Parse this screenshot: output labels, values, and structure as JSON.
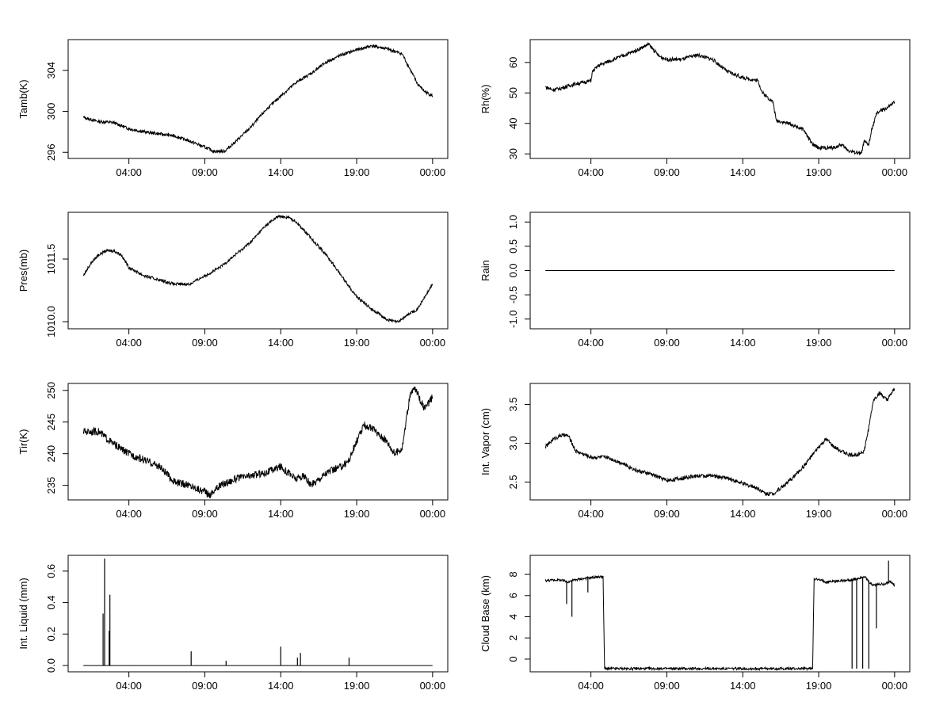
{
  "x_ticks": [
    "04:00",
    "09:00",
    "14:00",
    "19:00",
    "00:00"
  ],
  "x_tick_values": [
    3,
    8,
    13,
    18,
    23
  ],
  "line_color": "#000000",
  "chart_data": [
    {
      "type": "line",
      "ylabel": "Tamb(K)",
      "xlim": [
        -1,
        24
      ],
      "ylim": [
        295.4,
        307.0
      ],
      "yticks": [
        296,
        300,
        304
      ],
      "anchors": [
        [
          0,
          299.4
        ],
        [
          1,
          299.0
        ],
        [
          2,
          298.9
        ],
        [
          3,
          298.3
        ],
        [
          4,
          298.0
        ],
        [
          5,
          297.8
        ],
        [
          6,
          297.6
        ],
        [
          7,
          297.1
        ],
        [
          8,
          296.5
        ],
        [
          8.6,
          296.1
        ],
        [
          9.3,
          296.1
        ],
        [
          10,
          297.0
        ],
        [
          11,
          298.4
        ],
        [
          12,
          300.1
        ],
        [
          13,
          301.5
        ],
        [
          14,
          302.8
        ],
        [
          15,
          303.7
        ],
        [
          16,
          304.8
        ],
        [
          17,
          305.5
        ],
        [
          18,
          306.0
        ],
        [
          19,
          306.4
        ],
        [
          20,
          306.1
        ],
        [
          21,
          305.6
        ],
        [
          22,
          302.7
        ],
        [
          22.5,
          301.9
        ],
        [
          23,
          301.5
        ]
      ],
      "noise": 0.15
    },
    {
      "type": "line",
      "ylabel": "Rh(%)",
      "xlim": [
        -1,
        24
      ],
      "ylim": [
        28.5,
        67.5
      ],
      "yticks": [
        30,
        40,
        50,
        60
      ],
      "anchors": [
        [
          0,
          52
        ],
        [
          0.5,
          51
        ],
        [
          1,
          51.5
        ],
        [
          2,
          53
        ],
        [
          3,
          54
        ],
        [
          3.1,
          57
        ],
        [
          3.5,
          59
        ],
        [
          4,
          60
        ],
        [
          5,
          62
        ],
        [
          6,
          64
        ],
        [
          6.8,
          66
        ],
        [
          7.5,
          62
        ],
        [
          8,
          61
        ],
        [
          9,
          61
        ],
        [
          10,
          62.5
        ],
        [
          11,
          61
        ],
        [
          12,
          57
        ],
        [
          13,
          55
        ],
        [
          14,
          54
        ],
        [
          14.3,
          50
        ],
        [
          15,
          47
        ],
        [
          15.2,
          41
        ],
        [
          16,
          40
        ],
        [
          17,
          38
        ],
        [
          17.6,
          33
        ],
        [
          18,
          32
        ],
        [
          19,
          32
        ],
        [
          19.5,
          33
        ],
        [
          20,
          31
        ],
        [
          20.8,
          30
        ],
        [
          21,
          34
        ],
        [
          21.3,
          33
        ],
        [
          21.5,
          38
        ],
        [
          21.8,
          43
        ],
        [
          22,
          44
        ],
        [
          22.5,
          45
        ],
        [
          23,
          47
        ]
      ],
      "noise": 0.6
    },
    {
      "type": "line",
      "ylabel": "Pres(mb)",
      "xlim": [
        -1,
        24
      ],
      "ylim": [
        1009.83,
        1012.62
      ],
      "yticks": [
        1010.0,
        1011.5
      ],
      "ytick_labels": [
        "1010.0",
        "1011.5"
      ],
      "anchors": [
        [
          0,
          1011.1
        ],
        [
          0.5,
          1011.4
        ],
        [
          1,
          1011.6
        ],
        [
          1.5,
          1011.7
        ],
        [
          2,
          1011.7
        ],
        [
          2.5,
          1011.6
        ],
        [
          3,
          1011.3
        ],
        [
          4,
          1011.1
        ],
        [
          5,
          1011.0
        ],
        [
          6,
          1010.9
        ],
        [
          7,
          1010.9
        ],
        [
          8,
          1011.1
        ],
        [
          9,
          1011.3
        ],
        [
          10,
          1011.6
        ],
        [
          11,
          1011.9
        ],
        [
          12,
          1012.3
        ],
        [
          12.8,
          1012.52
        ],
        [
          13.5,
          1012.5
        ],
        [
          14,
          1012.4
        ],
        [
          15,
          1012.0
        ],
        [
          16,
          1011.6
        ],
        [
          17,
          1011.1
        ],
        [
          18,
          1010.6
        ],
        [
          19,
          1010.3
        ],
        [
          20,
          1010.05
        ],
        [
          20.7,
          1009.99
        ],
        [
          21.5,
          1010.2
        ],
        [
          22,
          1010.3
        ],
        [
          22.5,
          1010.6
        ],
        [
          23,
          1010.9
        ]
      ],
      "noise": 0.035
    },
    {
      "type": "line",
      "ylabel": "Rain",
      "xlim": [
        -1,
        24
      ],
      "ylim": [
        -1.2,
        1.2
      ],
      "yticks": [
        -1.0,
        -0.5,
        0.0,
        0.5,
        1.0
      ],
      "ytick_labels": [
        "-1.0",
        "-0.5",
        "0.0",
        "0.5",
        "1.0"
      ],
      "anchors": [
        [
          0,
          0
        ],
        [
          23,
          0
        ]
      ],
      "noise": 0
    },
    {
      "type": "line",
      "ylabel": "Tir(K)",
      "xlim": [
        -1,
        24
      ],
      "ylim": [
        232.7,
        251.1
      ],
      "yticks": [
        235,
        240,
        245,
        250
      ],
      "anchors": [
        [
          0,
          243.5
        ],
        [
          1,
          243.5
        ],
        [
          2,
          241.5
        ],
        [
          3,
          240
        ],
        [
          4,
          239
        ],
        [
          5,
          238
        ],
        [
          6,
          235.5
        ],
        [
          7,
          235
        ],
        [
          8,
          234
        ],
        [
          8.3,
          233.5
        ],
        [
          9,
          235
        ],
        [
          10,
          236
        ],
        [
          11,
          236.5
        ],
        [
          12,
          237
        ],
        [
          13,
          238
        ],
        [
          14,
          236
        ],
        [
          14.5,
          236.5
        ],
        [
          15,
          235
        ],
        [
          16,
          237
        ],
        [
          17,
          238
        ],
        [
          17.5,
          239
        ],
        [
          18,
          242
        ],
        [
          18.5,
          244.5
        ],
        [
          19,
          244
        ],
        [
          20,
          242
        ],
        [
          20.5,
          240
        ],
        [
          21,
          241
        ],
        [
          21.5,
          249
        ],
        [
          21.8,
          250.5
        ],
        [
          22.5,
          247
        ],
        [
          23,
          249
        ]
      ],
      "noise": 0.6
    },
    {
      "type": "line",
      "ylabel": "Int. Vapor (cm)",
      "xlim": [
        -1,
        24
      ],
      "ylim": [
        2.27,
        3.77
      ],
      "yticks": [
        2.5,
        3.0,
        3.5
      ],
      "ytick_labels": [
        "2.5",
        "3.0",
        "3.5"
      ],
      "anchors": [
        [
          0,
          2.95
        ],
        [
          0.5,
          3.05
        ],
        [
          1,
          3.1
        ],
        [
          1.5,
          3.1
        ],
        [
          2,
          2.9
        ],
        [
          3,
          2.82
        ],
        [
          4,
          2.82
        ],
        [
          5,
          2.75
        ],
        [
          6,
          2.65
        ],
        [
          7,
          2.6
        ],
        [
          8,
          2.52
        ],
        [
          9,
          2.55
        ],
        [
          10,
          2.58
        ],
        [
          11,
          2.58
        ],
        [
          12,
          2.55
        ],
        [
          13,
          2.48
        ],
        [
          14,
          2.42
        ],
        [
          14.5,
          2.35
        ],
        [
          15,
          2.35
        ],
        [
          16,
          2.5
        ],
        [
          17,
          2.7
        ],
        [
          18,
          2.95
        ],
        [
          18.5,
          3.05
        ],
        [
          19,
          2.95
        ],
        [
          19.5,
          2.9
        ],
        [
          20,
          2.85
        ],
        [
          20.5,
          2.85
        ],
        [
          21,
          2.9
        ],
        [
          21.3,
          3.2
        ],
        [
          21.6,
          3.55
        ],
        [
          22,
          3.65
        ],
        [
          22.5,
          3.55
        ],
        [
          23,
          3.7
        ]
      ],
      "noise": 0.025
    },
    {
      "type": "line",
      "ylabel": "Int. Liquid (mm)",
      "xlim": [
        -1,
        24
      ],
      "ylim": [
        -0.04,
        0.7
      ],
      "yticks": [
        0.0,
        0.2,
        0.4,
        0.6
      ],
      "ytick_labels": [
        "0.0",
        "0.2",
        "0.4",
        "0.6"
      ],
      "anchors": [
        [
          0,
          0
        ],
        [
          23,
          0
        ]
      ],
      "spikes": [
        [
          1.3,
          0.33
        ],
        [
          1.4,
          0.68
        ],
        [
          1.7,
          0.22
        ],
        [
          1.75,
          0.45
        ],
        [
          7.1,
          0.09
        ],
        [
          9.4,
          0.03
        ],
        [
          13,
          0.12
        ],
        [
          14.1,
          0.05
        ],
        [
          14.3,
          0.08
        ],
        [
          17.5,
          0.05
        ]
      ],
      "noise": 0
    },
    {
      "type": "line",
      "ylabel": "Cloud Base (km)",
      "xlim": [
        -1,
        24
      ],
      "ylim": [
        -1.2,
        9.8
      ],
      "yticks": [
        0,
        2,
        4,
        6,
        8
      ],
      "segments": [
        [
          [
            0,
            7.4
          ],
          [
            0.8,
            7.5
          ],
          [
            1.5,
            7.3
          ],
          [
            2,
            7.5
          ],
          [
            2.5,
            7.6
          ],
          [
            3,
            7.7
          ],
          [
            3.8,
            7.8
          ],
          [
            3.9,
            -0.9
          ]
        ],
        [
          [
            3.9,
            -0.9
          ],
          [
            17.6,
            -0.9
          ]
        ],
        [
          [
            17.6,
            -0.9
          ],
          [
            17.7,
            7.6
          ],
          [
            18.5,
            7.3
          ],
          [
            19.5,
            7.4
          ],
          [
            20.3,
            7.5
          ],
          [
            21,
            7.8
          ],
          [
            21.5,
            7.0
          ],
          [
            22.3,
            7.1
          ],
          [
            22.7,
            7.3
          ],
          [
            23,
            7.0
          ]
        ]
      ],
      "spikes": [
        [
          1.4,
          5.2
        ],
        [
          1.75,
          4.0
        ],
        [
          2.8,
          6.3
        ],
        [
          20.2,
          -0.9
        ],
        [
          20.5,
          -0.9
        ],
        [
          20.9,
          -0.9
        ],
        [
          21.3,
          -0.9
        ],
        [
          21.8,
          2.9
        ],
        [
          22.6,
          9.3
        ]
      ],
      "noise": 0.12
    }
  ]
}
